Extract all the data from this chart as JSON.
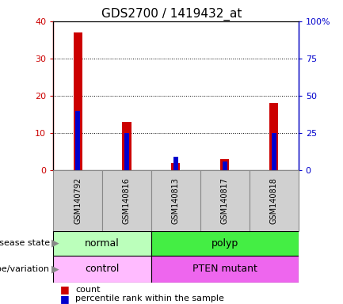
{
  "title": "GDS2700 / 1419432_at",
  "samples": [
    "GSM140792",
    "GSM140816",
    "GSM140813",
    "GSM140817",
    "GSM140818"
  ],
  "count_values": [
    37,
    13,
    2,
    3,
    18
  ],
  "percentile_values": [
    40,
    25,
    9,
    6,
    25
  ],
  "ylim_left": [
    0,
    40
  ],
  "ylim_right": [
    0,
    100
  ],
  "left_yticks": [
    0,
    10,
    20,
    30,
    40
  ],
  "right_yticks": [
    0,
    25,
    50,
    75,
    100
  ],
  "right_yticklabels": [
    "0",
    "25",
    "50",
    "75",
    "100%"
  ],
  "red_bar_width": 0.18,
  "blue_bar_width": 0.1,
  "count_color": "#cc0000",
  "percentile_color": "#0000cc",
  "disease_groups": [
    {
      "label": "normal",
      "samples": [
        0,
        1
      ],
      "color": "#bbffbb"
    },
    {
      "label": "polyp",
      "samples": [
        2,
        3,
        4
      ],
      "color": "#44ee44"
    }
  ],
  "genotype_groups": [
    {
      "label": "control",
      "samples": [
        0,
        1
      ],
      "color": "#ffbbff"
    },
    {
      "label": "PTEN mutant",
      "samples": [
        2,
        3,
        4
      ],
      "color": "#ee66ee"
    }
  ],
  "grid_color": "black",
  "left_tick_color": "#cc0000",
  "right_tick_color": "#0000cc",
  "bg_color": "#ffffff",
  "legend_count_label": "count",
  "legend_pct_label": "percentile rank within the sample",
  "disease_label": "disease state",
  "genotype_label": "genotype/variation",
  "arrow_color": "#888888",
  "sample_box_color": "#d0d0d0",
  "sample_box_edge": "#888888"
}
